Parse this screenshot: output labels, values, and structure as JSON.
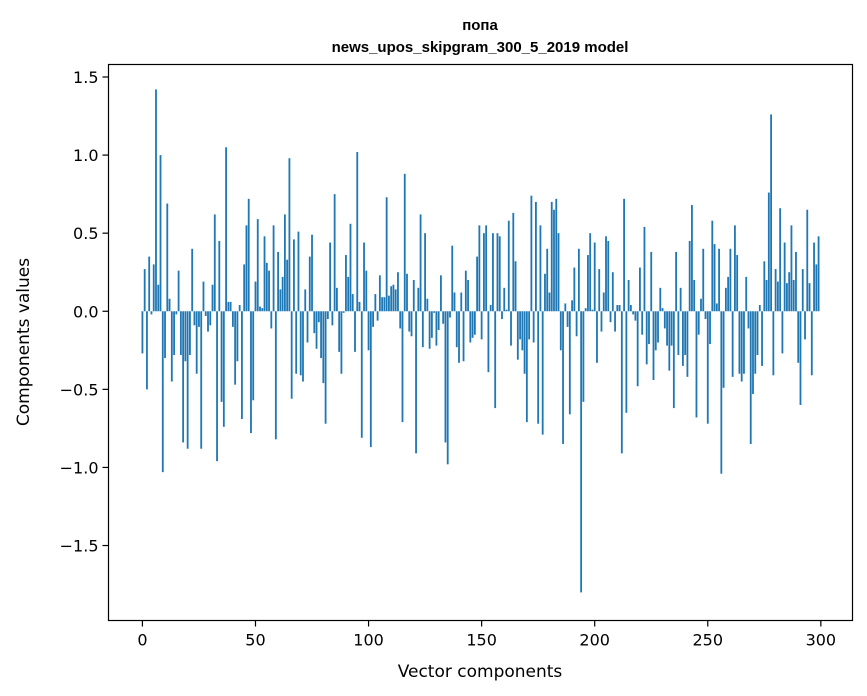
{
  "chart_data": {
    "type": "bar",
    "title": "попа",
    "subtitle": "news_upos_skipgram_300_5_2019 model",
    "xlabel": "Vector components",
    "ylabel": "Components values",
    "xlim": [
      -15,
      314
    ],
    "ylim": [
      -1.98,
      1.58
    ],
    "xticks": [
      0,
      50,
      100,
      150,
      200,
      250,
      300
    ],
    "yticks": [
      -1.5,
      -1.0,
      -0.5,
      0.0,
      0.5,
      1.0,
      1.5
    ],
    "ytick_labels": [
      "−1.5",
      "−1.0",
      "−0.5",
      "0.0",
      "0.5",
      "1.0",
      "1.5"
    ],
    "bar_color": "#1f77b4",
    "grid": false,
    "legend": "none",
    "x": [
      0,
      1,
      2,
      3,
      4,
      5,
      6,
      7,
      8,
      9,
      10,
      11,
      12,
      13,
      14,
      15,
      16,
      17,
      18,
      19,
      20,
      21,
      22,
      23,
      24,
      25,
      26,
      27,
      28,
      29,
      30,
      31,
      32,
      33,
      34,
      35,
      36,
      37,
      38,
      39,
      40,
      41,
      42,
      43,
      44,
      45,
      46,
      47,
      48,
      49,
      50,
      51,
      52,
      53,
      54,
      55,
      56,
      57,
      58,
      59,
      60,
      61,
      62,
      63,
      64,
      65,
      66,
      67,
      68,
      69,
      70,
      71,
      72,
      73,
      74,
      75,
      76,
      77,
      78,
      79,
      80,
      81,
      82,
      83,
      84,
      85,
      86,
      87,
      88,
      89,
      90,
      91,
      92,
      93,
      94,
      95,
      96,
      97,
      98,
      99,
      100,
      101,
      102,
      103,
      104,
      105,
      106,
      107,
      108,
      109,
      110,
      111,
      112,
      113,
      114,
      115,
      116,
      117,
      118,
      119,
      120,
      121,
      122,
      123,
      124,
      125,
      126,
      127,
      128,
      129,
      130,
      131,
      132,
      133,
      134,
      135,
      136,
      137,
      138,
      139,
      140,
      141,
      142,
      143,
      144,
      145,
      146,
      147,
      148,
      149,
      150,
      151,
      152,
      153,
      154,
      155,
      156,
      157,
      158,
      159,
      160,
      161,
      162,
      163,
      164,
      165,
      166,
      167,
      168,
      169,
      170,
      171,
      172,
      173,
      174,
      175,
      176,
      177,
      178,
      179,
      180,
      181,
      182,
      183,
      184,
      185,
      186,
      187,
      188,
      189,
      190,
      191,
      192,
      193,
      194,
      195,
      196,
      197,
      198,
      199,
      200,
      201,
      202,
      203,
      204,
      205,
      206,
      207,
      208,
      209,
      210,
      211,
      212,
      213,
      214,
      215,
      216,
      217,
      218,
      219,
      220,
      221,
      222,
      223,
      224,
      225,
      226,
      227,
      228,
      229,
      230,
      231,
      232,
      233,
      234,
      235,
      236,
      237,
      238,
      239,
      240,
      241,
      242,
      243,
      244,
      245,
      246,
      247,
      248,
      249,
      250,
      251,
      252,
      253,
      254,
      255,
      256,
      257,
      258,
      259,
      260,
      261,
      262,
      263,
      264,
      265,
      266,
      267,
      268,
      269,
      270,
      271,
      272,
      273,
      274,
      275,
      276,
      277,
      278,
      279,
      280,
      281,
      282,
      283,
      284,
      285,
      286,
      287,
      288,
      289,
      290,
      291,
      292,
      293,
      294,
      295,
      296,
      297,
      298,
      299
    ],
    "values": [
      -0.27,
      0.27,
      -0.5,
      0.35,
      -0.02,
      0.3,
      1.42,
      0.17,
      1.0,
      -1.03,
      -0.3,
      0.69,
      0.08,
      -0.45,
      -0.28,
      -0.02,
      0.26,
      -0.28,
      -0.84,
      -0.32,
      -0.88,
      -0.28,
      0.4,
      -0.09,
      -0.4,
      -0.1,
      -0.88,
      0.19,
      -0.03,
      -0.13,
      -0.09,
      0.17,
      0.62,
      -0.96,
      0.45,
      -0.58,
      -0.74,
      1.05,
      0.06,
      0.06,
      -0.1,
      -0.47,
      -0.32,
      0.04,
      -0.69,
      0.3,
      0.55,
      0.72,
      -0.78,
      -0.57,
      0.19,
      0.59,
      0.03,
      0.02,
      0.48,
      0.31,
      0.26,
      -0.11,
      0.55,
      -0.82,
      0.38,
      0.14,
      0.22,
      0.62,
      0.33,
      0.98,
      -0.56,
      0.46,
      -0.4,
      0.51,
      -0.41,
      -0.45,
      0.14,
      -0.2,
      0.35,
      0.49,
      -0.14,
      -0.24,
      -0.07,
      -0.3,
      -0.46,
      -0.72,
      -0.05,
      0.44,
      -0.09,
      0.75,
      0.15,
      -0.26,
      -0.4,
      -0.01,
      0.36,
      0.22,
      0.56,
      0.11,
      -0.26,
      1.02,
      0.06,
      -0.81,
      0.44,
      0.26,
      -0.25,
      -0.87,
      -0.1,
      0.11,
      -0.06,
      0.23,
      0.09,
      0.09,
      0.73,
      0.1,
      0.16,
      0.17,
      0.14,
      0.25,
      -0.11,
      -0.71,
      0.88,
      0.24,
      -0.13,
      -0.16,
      0.2,
      -0.91,
      0.15,
      0.62,
      -0.23,
      0.5,
      0.08,
      -0.24,
      -0.17,
      -0.01,
      -0.22,
      -0.12,
      0.23,
      -0.08,
      -0.84,
      -0.98,
      -0.04,
      0.42,
      0.12,
      -0.23,
      -0.33,
      0.12,
      -0.32,
      0.26,
      0.2,
      -0.2,
      -0.17,
      -0.15,
      0.35,
      0.55,
      -0.18,
      0.5,
      0.55,
      -0.39,
      0.04,
      0.5,
      -0.62,
      0.5,
      0.48,
      -0.05,
      0.15,
      0.01,
      0.58,
      -0.22,
      0.63,
      0.32,
      -0.31,
      -0.18,
      -0.25,
      -0.4,
      -0.71,
      -0.18,
      0.74,
      -0.2,
      0.7,
      -0.72,
      0.55,
      -0.79,
      0.24,
      0.4,
      0.12,
      0.7,
      0.65,
      0.72,
      0.5,
      -0.25,
      -0.85,
      0.05,
      -0.1,
      -0.66,
      0.07,
      0.28,
      -0.16,
      0.4,
      -1.8,
      -0.58,
      0.02,
      0.36,
      0.5,
      0.01,
      0.44,
      -0.33,
      0.27,
      -0.13,
      0.12,
      0.48,
      0.45,
      -0.07,
      0.25,
      -0.13,
      0.04,
      0.04,
      -0.91,
      0.72,
      -0.65,
      0.2,
      0.04,
      -0.02,
      -0.06,
      -0.48,
      0.28,
      -0.15,
      0.54,
      -0.34,
      -0.21,
      0.38,
      -0.44,
      -0.25,
      -0.2,
      0.15,
      0.02,
      -0.11,
      -0.22,
      -0.38,
      -0.22,
      -0.62,
      0.38,
      -0.28,
      0.15,
      -0.35,
      -0.28,
      -0.42,
      0.45,
      0.68,
      0.2,
      -0.68,
      -0.15,
      0.08,
      0.4,
      -0.05,
      -0.72,
      -0.21,
      0.58,
      0.43,
      0.05,
      0.4,
      -1.04,
      -0.49,
      0.15,
      0.22,
      0.4,
      -0.42,
      0.55,
      0.36,
      -0.4,
      -0.45,
      -0.4,
      0.22,
      -0.11,
      -0.85,
      -0.53,
      -0.4,
      -0.28,
      0.04,
      -0.35,
      0.32,
      0.2,
      0.76,
      1.26,
      -0.41,
      0.27,
      0.19,
      0.66,
      -0.27,
      0.44,
      0.18,
      0.25,
      0.55,
      0.2,
      0.38,
      -0.33,
      -0.6,
      0.27,
      -0.18,
      0.65,
      0.18,
      -0.41,
      0.44,
      0.3,
      0.48
    ]
  }
}
